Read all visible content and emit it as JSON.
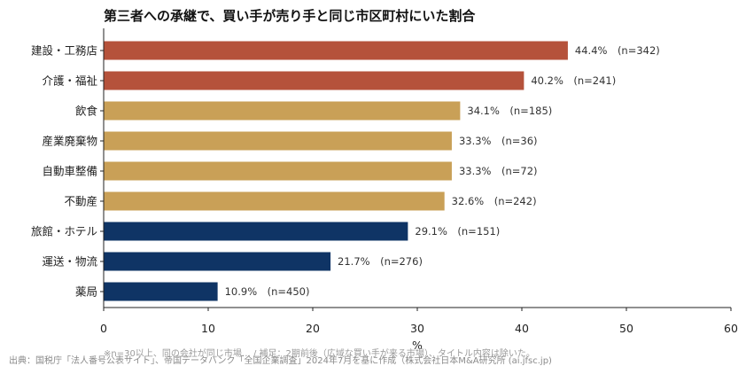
{
  "chart_data": {
    "type": "bar",
    "orientation": "horizontal",
    "title": "第三者への承継で、買い手が売り手と同じ市区町村にいた割合",
    "xlabel": "%",
    "ylabel": "",
    "xlim": [
      0,
      60
    ],
    "xticks": [
      0,
      10,
      20,
      30,
      40,
      50,
      60
    ],
    "grid": false,
    "categories": [
      "建設・工務店",
      "介護・福祉",
      "飲食",
      "産業廃棄物",
      "自動車整備",
      "不動産",
      "旅館・ホテル",
      "運送・物流",
      "薬局"
    ],
    "values": [
      44.4,
      40.2,
      34.1,
      33.3,
      33.3,
      32.6,
      29.1,
      21.7,
      10.9
    ],
    "data_labels": [
      "44.4%　(n=342)",
      "40.2%　(n=241)",
      "34.1%　(n=185)",
      "33.3%　(n=36)",
      "33.3%　(n=72)",
      "32.6%　(n=242)",
      "29.1%　(n=151)",
      "21.7%　(n=276)",
      "10.9%　(n=450)"
    ],
    "colors": [
      "#b5523b",
      "#b5523b",
      "#c9a057",
      "#c9a057",
      "#c9a057",
      "#c9a057",
      "#0f3465",
      "#0f3465",
      "#0f3465"
    ],
    "note": "※n=30以上、同の会社が同じ市場… / 補足：2期前後（広域な買い手が来る市場）、タイトル内容は除いた。",
    "source": "出典：国税庁「法人番号公表サイト」、帝国データバンク「全国企業調査」2024年7月を基に作成（株式会社日本M&A研究所 (ai.jfsc.jp)"
  }
}
